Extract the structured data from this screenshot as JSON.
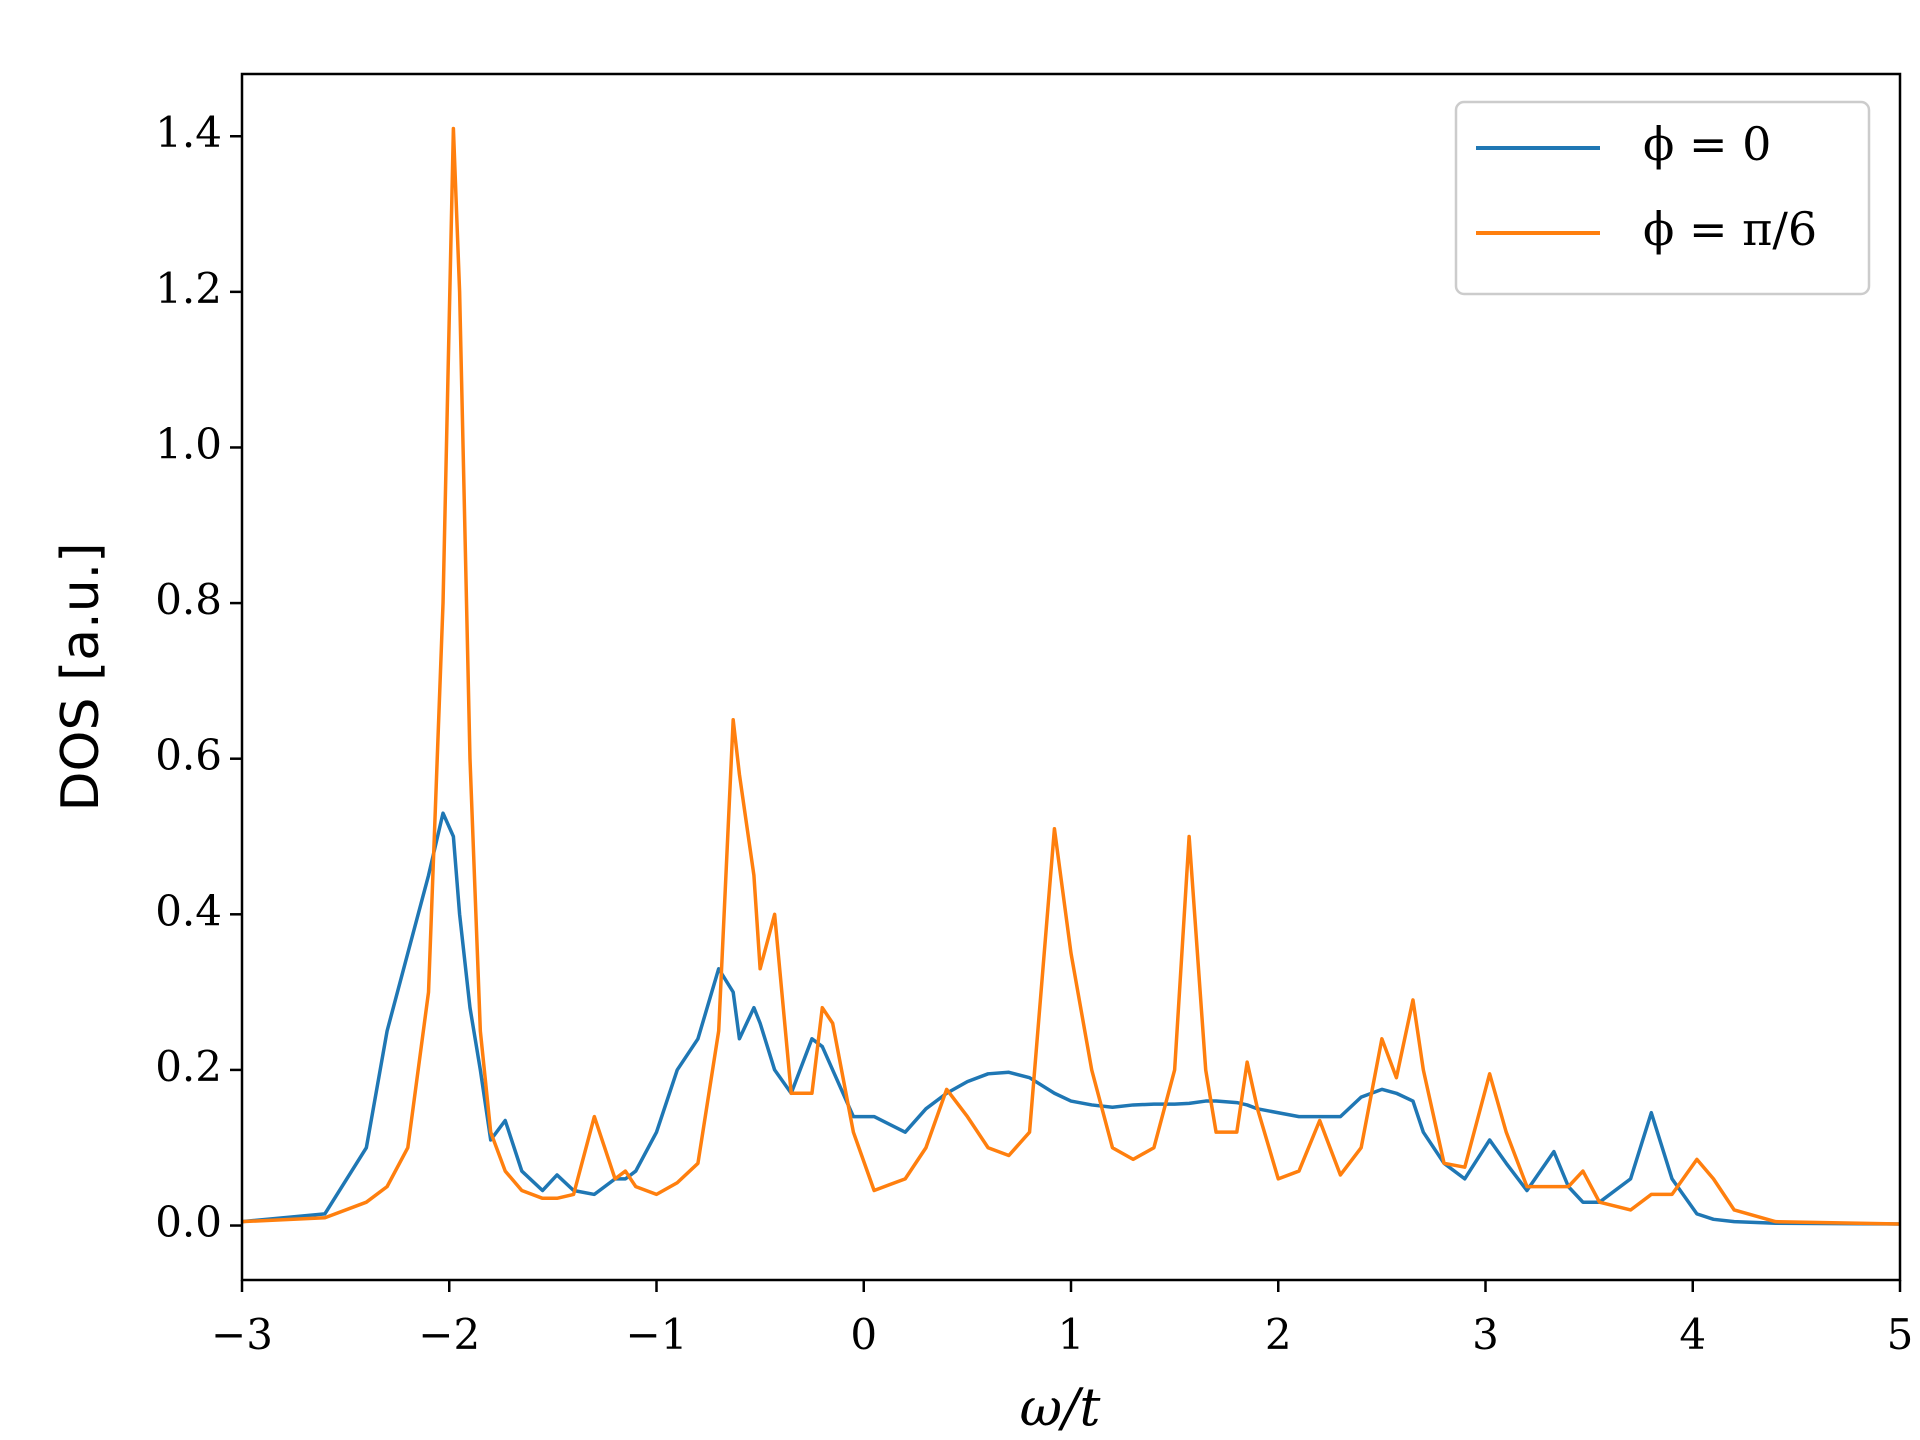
{
  "chart_data": {
    "type": "line",
    "xlabel": "ω/t",
    "ylabel": "DOS [a.u.]",
    "x": [
      -3,
      -2.6,
      -2.4,
      -2.3,
      -2.2,
      -2.1,
      -2.03,
      -1.98,
      -1.95,
      -1.9,
      -1.85,
      -1.8,
      -1.73,
      -1.65,
      -1.55,
      -1.48,
      -1.4,
      -1.3,
      -1.25,
      -1.2,
      -1.15,
      -1.1,
      -1.0,
      -0.9,
      -0.8,
      -0.7,
      -0.63,
      -0.6,
      -0.53,
      -0.5,
      -0.43,
      -0.35,
      -0.25,
      -0.2,
      -0.15,
      -0.05,
      0.05,
      0.2,
      0.3,
      0.4,
      0.5,
      0.6,
      0.7,
      0.8,
      0.92,
      1.0,
      1.1,
      1.2,
      1.3,
      1.4,
      1.5,
      1.57,
      1.65,
      1.7,
      1.8,
      1.85,
      1.9,
      2.0,
      2.1,
      2.2,
      2.3,
      2.4,
      2.5,
      2.57,
      2.65,
      2.7,
      2.8,
      2.9,
      3.02,
      3.1,
      3.2,
      3.33,
      3.4,
      3.47,
      3.55,
      3.7,
      3.8,
      3.9,
      4.02,
      4.1,
      4.2,
      4.4,
      5
    ],
    "series": [
      {
        "name": "ϕ = 0",
        "color": "#1f77b4",
        "values": [
          0.005,
          0.015,
          0.1,
          0.25,
          0.35,
          0.45,
          0.53,
          0.5,
          0.4,
          0.28,
          0.2,
          0.11,
          0.135,
          0.07,
          0.045,
          0.065,
          0.045,
          0.04,
          0.05,
          0.06,
          0.06,
          0.07,
          0.12,
          0.2,
          0.24,
          0.33,
          0.3,
          0.24,
          0.28,
          0.26,
          0.2,
          0.17,
          0.24,
          0.23,
          0.2,
          0.14,
          0.14,
          0.12,
          0.15,
          0.17,
          0.185,
          0.195,
          0.197,
          0.19,
          0.17,
          0.16,
          0.155,
          0.152,
          0.155,
          0.156,
          0.156,
          0.157,
          0.16,
          0.16,
          0.158,
          0.155,
          0.15,
          0.145,
          0.14,
          0.14,
          0.14,
          0.165,
          0.175,
          0.17,
          0.16,
          0.12,
          0.08,
          0.06,
          0.11,
          0.08,
          0.045,
          0.095,
          0.05,
          0.03,
          0.03,
          0.06,
          0.145,
          0.06,
          0.015,
          0.008,
          0.005,
          0.003,
          0.002
        ]
      },
      {
        "name": "ϕ = π/6",
        "color": "#ff7f0e",
        "values": [
          0.005,
          0.01,
          0.03,
          0.05,
          0.1,
          0.3,
          0.8,
          1.41,
          1.2,
          0.6,
          0.25,
          0.12,
          0.07,
          0.045,
          0.035,
          0.035,
          0.04,
          0.14,
          0.1,
          0.06,
          0.07,
          0.05,
          0.04,
          0.055,
          0.08,
          0.25,
          0.65,
          0.58,
          0.45,
          0.33,
          0.4,
          0.17,
          0.17,
          0.28,
          0.26,
          0.12,
          0.045,
          0.06,
          0.1,
          0.175,
          0.14,
          0.1,
          0.09,
          0.12,
          0.51,
          0.35,
          0.2,
          0.1,
          0.085,
          0.1,
          0.2,
          0.5,
          0.2,
          0.12,
          0.12,
          0.21,
          0.15,
          0.06,
          0.07,
          0.135,
          0.065,
          0.1,
          0.24,
          0.19,
          0.29,
          0.2,
          0.08,
          0.075,
          0.195,
          0.12,
          0.05,
          0.05,
          0.05,
          0.07,
          0.03,
          0.02,
          0.04,
          0.04,
          0.085,
          0.06,
          0.02,
          0.005,
          0.002
        ]
      }
    ],
    "xlim": [
      -3,
      5
    ],
    "xticks": [
      {
        "value": -3,
        "label": "−3"
      },
      {
        "value": -2,
        "label": "−2"
      },
      {
        "value": -1,
        "label": "−1"
      },
      0,
      1,
      2,
      3,
      4,
      5
    ],
    "ylim": [
      -0.07,
      1.48
    ],
    "yticks": [
      {
        "value": 0,
        "label": "0.0"
      },
      0.2,
      0.4,
      0.6,
      0.8,
      {
        "value": 1,
        "label": "1.0"
      },
      1.2,
      1.4
    ],
    "legend": "upper right"
  }
}
